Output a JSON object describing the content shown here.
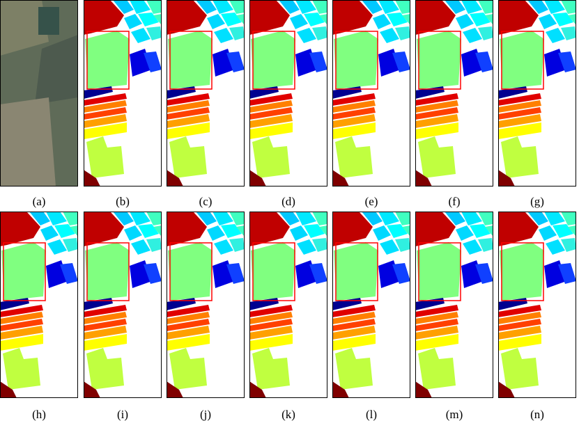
{
  "panels": [
    {
      "label": "(a)"
    },
    {
      "label": "(b)"
    },
    {
      "label": "(c)"
    },
    {
      "label": "(d)"
    },
    {
      "label": "(e)"
    },
    {
      "label": "(f)"
    },
    {
      "label": "(g)"
    },
    {
      "label": "(h)"
    },
    {
      "label": "(i)"
    },
    {
      "label": "(j)"
    },
    {
      "label": "(k)"
    },
    {
      "label": "(l)"
    },
    {
      "label": "(m)"
    },
    {
      "label": "(n)"
    }
  ]
}
